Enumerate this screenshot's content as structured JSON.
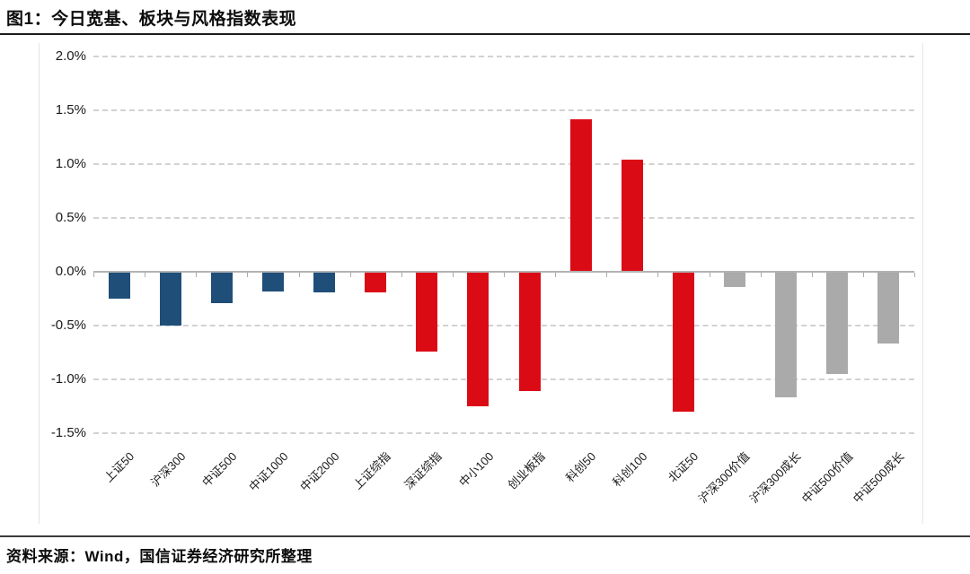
{
  "title": "图1：今日宽基、板块与风格指数表现",
  "source": "资料来源：Wind，国信证券经济研究所整理",
  "colors": {
    "broad_base_blue": "#1F4E79",
    "board_red": "#DB0B16",
    "style_gray": "#AAAAAA",
    "gridline": "#D2D2D2",
    "axis": "#B3B3B3",
    "divider": "#1C1C1C"
  },
  "chart_data": {
    "type": "bar",
    "title": "今日宽基、板块与风格指数表现",
    "unit": "%",
    "categories": [
      "上证50",
      "沪深300",
      "中证500",
      "中证1000",
      "中证2000",
      "上证综指",
      "深证综指",
      "中小100",
      "创业板指",
      "科创50",
      "科创100",
      "北证50",
      "沪深300价值",
      "沪深300成长",
      "中证500价值",
      "中证500成长"
    ],
    "values": [
      -0.25,
      -0.5,
      -0.29,
      -0.18,
      -0.19,
      -0.19,
      -0.74,
      -1.25,
      -1.11,
      1.42,
      1.04,
      -1.3,
      -0.14,
      -1.17,
      -0.95,
      -0.67
    ],
    "bar_colors": [
      "#1F4E79",
      "#1F4E79",
      "#1F4E79",
      "#1F4E79",
      "#1F4E79",
      "#DB0B16",
      "#DB0B16",
      "#DB0B16",
      "#DB0B16",
      "#DB0B16",
      "#DB0B16",
      "#DB0B16",
      "#AAAAAA",
      "#AAAAAA",
      "#AAAAAA",
      "#AAAAAA"
    ],
    "ytick_labels": [
      "2.0%",
      "1.5%",
      "1.0%",
      "0.5%",
      "0.0%",
      "-0.5%",
      "-1.0%",
      "-1.5%"
    ],
    "ytick_values": [
      2.0,
      1.5,
      1.0,
      0.5,
      0.0,
      -0.5,
      -1.0,
      -1.5
    ],
    "ylim": [
      -1.75,
      2.1
    ],
    "xlabel": "",
    "ylabel": "",
    "grid": "horizontal-dashed",
    "legend": "none",
    "xlabel_rotation_deg": 45
  }
}
